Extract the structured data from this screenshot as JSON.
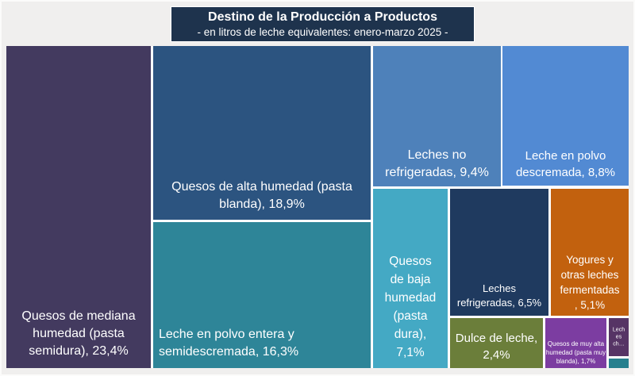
{
  "page": {
    "background_color": "#F0EFEE",
    "tile_gap_color": "#FFFFFF",
    "label_text_color": "#FFFFFF"
  },
  "header": {
    "title": "Destino de la Producción a Productos",
    "subtitle": "- en litros de leche equivalentes: enero-marzo 2025 -",
    "background": "#1E334D",
    "text_color": "#FFFFFF"
  },
  "chart_data": {
    "type": "treemap",
    "title": "Destino de la Producción a Productos",
    "subtitle": "- en litros de leche equivalentes: enero-marzo 2025 -",
    "legend_position": "none",
    "items": [
      {
        "name": "Quesos de mediana humedad (pasta semidura)",
        "value": 23.4,
        "value_label": "23,4%",
        "label": "Quesos de mediana humedad (pasta semidura), 23,4%",
        "lines": [
          "Quesos de mediana",
          "humedad (pasta",
          "semidura), 23,4%"
        ],
        "color": "#433A5F"
      },
      {
        "name": "Quesos de alta humedad (pasta blanda)",
        "value": 18.9,
        "value_label": "18,9%",
        "label": "Quesos de alta humedad (pasta blanda), 18,9%",
        "lines": [
          "Quesos de alta humedad (pasta",
          "blanda), 18,9%"
        ],
        "color": "#2C5480"
      },
      {
        "name": "Leche en polvo entera y semidescremada",
        "value": 16.3,
        "value_label": "16,3%",
        "label": "Leche en polvo entera y semidescremada, 16,3%",
        "lines": [
          "Leche en polvo entera y",
          "semidescremada, 16,3%"
        ],
        "color": "#2E8598"
      },
      {
        "name": "Leches no refrigeradas",
        "value": 9.4,
        "value_label": "9,4%",
        "label": "Leches no refrigeradas, 9,4%",
        "lines": [
          "Leches no",
          "refrigeradas, 9,4%"
        ],
        "color": "#4E81BA"
      },
      {
        "name": "Leche en polvo descremada",
        "value": 8.8,
        "value_label": "8,8%",
        "label": "Leche en polvo descremada, 8,8%",
        "lines": [
          "Leche en polvo",
          "descremada, 8,8%"
        ],
        "color": "#528AD3"
      },
      {
        "name": "Quesos de baja humedad (pasta dura)",
        "value": 7.1,
        "value_label": "7,1%",
        "label": "Quesos de baja humedad (pasta dura), 7,1%",
        "lines": [
          "Quesos",
          "de baja",
          "humedad",
          "(pasta",
          "dura),",
          "7,1%"
        ],
        "color": "#44A9C4"
      },
      {
        "name": "Leches refrigeradas",
        "value": 6.5,
        "value_label": "6,5%",
        "label": "Leches refrigeradas, 6,5%",
        "lines": [
          "Leches",
          "refrigeradas, 6,5%"
        ],
        "color": "#1F3A5F"
      },
      {
        "name": "Yogures y otras leches fermentadas",
        "value": 5.1,
        "value_label": "5,1%",
        "label": "Yogures y otras leches fermentadas , 5,1%",
        "lines": [
          "Yogures y",
          "otras leches",
          "fermentadas",
          ", 5,1%"
        ],
        "color": "#C2610E"
      },
      {
        "name": "Dulce de leche",
        "value": 2.4,
        "value_label": "2,4%",
        "label": "Dulce de leche, 2,4%",
        "lines": [
          "Dulce de leche,",
          "2,4%"
        ],
        "color": "#6B7E3A"
      },
      {
        "name": "Quesos de muy alta humedad (pasta muy blanda)",
        "value": 1.7,
        "value_label": "1,7%",
        "label": "Quesos de muy alta humedad (pasta muy blanda), 1,7%",
        "lines": [
          "Quesos de muy alta",
          "humedad (pasta muy",
          "blanda), 1,7%"
        ],
        "color": "#7C3DA1"
      },
      {
        "name": "Leches ch… (etiqueta truncada)",
        "value": null,
        "value_label": "",
        "label": "Lech es ch…",
        "lines": [
          "Lech",
          "es",
          "ch…"
        ],
        "color": "#563465",
        "truncated": true
      },
      {
        "name": "(sin etiqueta visible)",
        "value": null,
        "value_label": "",
        "label": "",
        "lines": [],
        "color": "#27808E"
      }
    ]
  }
}
